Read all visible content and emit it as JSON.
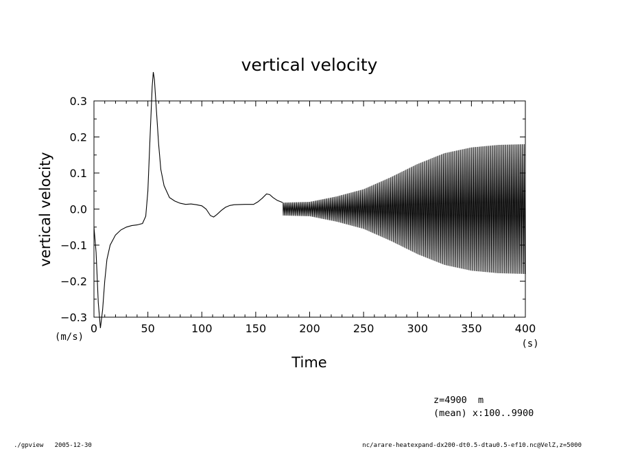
{
  "chart_data": {
    "type": "line",
    "title": "vertical velocity",
    "xlabel": "Time",
    "ylabel": "vertical velocity",
    "x_unit": "(s)",
    "y_unit": "(m/s)",
    "xlim": [
      0,
      400
    ],
    "ylim": [
      -0.3,
      0.3
    ],
    "x_ticks": [
      "0",
      "50",
      "100",
      "150",
      "200",
      "250",
      "300",
      "350",
      "400"
    ],
    "y_ticks": [
      "-0.3",
      "-0.2",
      "-0.1",
      "0.0",
      "0.1",
      "0.2",
      "0.3"
    ],
    "grid": false,
    "series": [
      {
        "points": [
          [
            0,
            -0.05
          ],
          [
            2,
            -0.12
          ],
          [
            4,
            -0.26
          ],
          [
            6,
            -0.33
          ],
          [
            8,
            -0.28
          ],
          [
            10,
            -0.2
          ],
          [
            12,
            -0.14
          ],
          [
            15,
            -0.1
          ],
          [
            20,
            -0.072
          ],
          [
            25,
            -0.058
          ],
          [
            30,
            -0.05
          ],
          [
            35,
            -0.046
          ],
          [
            40,
            -0.044
          ],
          [
            45,
            -0.04
          ],
          [
            48,
            -0.02
          ],
          [
            50,
            0.05
          ],
          [
            52,
            0.2
          ],
          [
            54,
            0.34
          ],
          [
            55,
            0.38
          ],
          [
            56,
            0.36
          ],
          [
            58,
            0.27
          ],
          [
            60,
            0.18
          ],
          [
            62,
            0.11
          ],
          [
            65,
            0.065
          ],
          [
            70,
            0.032
          ],
          [
            75,
            0.022
          ],
          [
            80,
            0.016
          ],
          [
            85,
            0.013
          ],
          [
            90,
            0.014
          ],
          [
            95,
            0.012
          ],
          [
            100,
            0.009
          ],
          [
            104,
            0.0
          ],
          [
            108,
            -0.018
          ],
          [
            111,
            -0.022
          ],
          [
            114,
            -0.015
          ],
          [
            118,
            -0.004
          ],
          [
            122,
            0.005
          ],
          [
            126,
            0.01
          ],
          [
            130,
            0.012
          ],
          [
            140,
            0.013
          ],
          [
            148,
            0.013
          ],
          [
            152,
            0.02
          ],
          [
            156,
            0.03
          ],
          [
            160,
            0.042
          ],
          [
            163,
            0.04
          ],
          [
            166,
            0.032
          ],
          [
            170,
            0.024
          ],
          [
            175,
            0.018
          ]
        ]
      }
    ],
    "oscillation": {
      "x_range": [
        175,
        400
      ],
      "period_s": 1.0,
      "envelope": [
        [
          175,
          0.018
        ],
        [
          200,
          0.02
        ],
        [
          225,
          0.035
        ],
        [
          250,
          0.055
        ],
        [
          275,
          0.088
        ],
        [
          300,
          0.125
        ],
        [
          325,
          0.155
        ],
        [
          350,
          0.171
        ],
        [
          375,
          0.178
        ],
        [
          400,
          0.18
        ]
      ]
    }
  },
  "annotations": {
    "level": "z=4900  m",
    "mean": "(mean) x:100..9900",
    "footer_left": "./gpview   2005-12-30",
    "footer_right": "nc/arare-heatexpand-dx200-dt0.5-dtau0.5-ef10.nc@VelZ,z=5000"
  }
}
